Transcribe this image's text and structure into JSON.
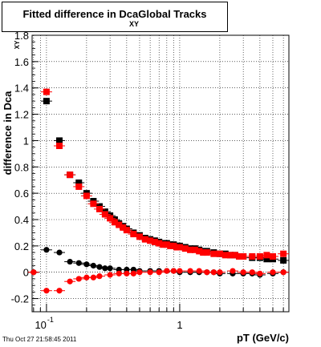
{
  "title": {
    "main": "Fitted difference in Dca",
    "sub": "XY",
    "suffix": "Global Tracks"
  },
  "footer": "Thu Oct 27 21:58:45 2011",
  "colors": {
    "series1": "#000000",
    "series2": "#ff0000",
    "grid": "#000000"
  },
  "chart_data": {
    "type": "scatter",
    "xlabel": "pT (GeV/c)",
    "ylabel": "difference in Dca",
    "ylabel_sub": "XY",
    "xscale": "log",
    "xlim": [
      0.078,
      6.6
    ],
    "ylim": [
      -0.3,
      1.8
    ],
    "grid": true,
    "yticks": [
      {
        "v": -0.2,
        "label": "-0.2"
      },
      {
        "v": 0,
        "label": "0"
      },
      {
        "v": 0.2,
        "label": "0.2"
      },
      {
        "v": 0.4,
        "label": "0.4"
      },
      {
        "v": 0.6,
        "label": "0.6"
      },
      {
        "v": 0.8,
        "label": "0.8"
      },
      {
        "v": 1.0,
        "label": "1"
      },
      {
        "v": 1.2,
        "label": "1.2"
      },
      {
        "v": 1.4,
        "label": "1.4"
      },
      {
        "v": 1.6,
        "label": "1.6"
      },
      {
        "v": 1.8,
        "label": "1.8"
      }
    ],
    "xticks": [
      {
        "v": 0.1,
        "label": "10",
        "sup": "-1"
      },
      {
        "v": 1,
        "label": "1",
        "sup": ""
      }
    ],
    "series": [
      {
        "marker": "square",
        "color": "#000000",
        "x": [
          0.1,
          0.125,
          0.15,
          0.175,
          0.2,
          0.225,
          0.25,
          0.275,
          0.3,
          0.325,
          0.35,
          0.375,
          0.4,
          0.45,
          0.5,
          0.55,
          0.6,
          0.65,
          0.7,
          0.75,
          0.8,
          0.85,
          0.9,
          0.95,
          1.0,
          1.1,
          1.2,
          1.3,
          1.4,
          1.5,
          1.6,
          1.8,
          2.0,
          2.2,
          2.4,
          2.6,
          2.8,
          3.0,
          3.5,
          4.0,
          4.5,
          5.0,
          6.0
        ],
        "y": [
          1.3,
          1.0,
          0.74,
          0.68,
          0.6,
          0.54,
          0.5,
          0.46,
          0.43,
          0.4,
          0.37,
          0.35,
          0.33,
          0.3,
          0.28,
          0.26,
          0.25,
          0.24,
          0.23,
          0.22,
          0.22,
          0.21,
          0.21,
          0.2,
          0.2,
          0.19,
          0.18,
          0.18,
          0.17,
          0.16,
          0.16,
          0.15,
          0.14,
          0.14,
          0.13,
          0.13,
          0.12,
          0.12,
          0.11,
          0.11,
          0.1,
          0.1,
          0.09
        ]
      },
      {
        "marker": "square",
        "color": "#ff0000",
        "x": [
          0.1,
          0.125,
          0.15,
          0.175,
          0.2,
          0.225,
          0.25,
          0.275,
          0.3,
          0.325,
          0.35,
          0.375,
          0.4,
          0.45,
          0.5,
          0.55,
          0.6,
          0.65,
          0.7,
          0.75,
          0.8,
          0.85,
          0.9,
          0.95,
          1.0,
          1.1,
          1.2,
          1.3,
          1.4,
          1.5,
          1.6,
          1.8,
          2.0,
          2.2,
          2.4,
          2.6,
          2.8,
          3.0,
          3.5,
          4.0,
          4.5,
          5.0,
          6.0
        ],
        "y": [
          1.37,
          0.96,
          0.74,
          0.65,
          0.58,
          0.52,
          0.48,
          0.44,
          0.41,
          0.38,
          0.36,
          0.34,
          0.32,
          0.29,
          0.27,
          0.25,
          0.24,
          0.23,
          0.22,
          0.21,
          0.21,
          0.2,
          0.2,
          0.19,
          0.19,
          0.18,
          0.17,
          0.17,
          0.16,
          0.15,
          0.15,
          0.14,
          0.14,
          0.13,
          0.13,
          0.13,
          0.12,
          0.12,
          0.12,
          0.12,
          0.13,
          0.12,
          0.14
        ]
      },
      {
        "marker": "circle",
        "color": "#000000",
        "x": [
          0.08,
          0.1,
          0.125,
          0.15,
          0.175,
          0.2,
          0.225,
          0.25,
          0.275,
          0.3,
          0.35,
          0.4,
          0.45,
          0.5,
          0.6,
          0.7,
          0.8,
          0.9,
          1.0,
          1.2,
          1.4,
          1.6,
          1.8,
          2.0,
          2.5,
          3.0,
          3.5,
          4.0,
          5.0,
          6.0
        ],
        "y": [
          0.0,
          0.17,
          0.15,
          0.08,
          0.07,
          0.06,
          0.05,
          0.04,
          0.03,
          0.03,
          0.02,
          0.02,
          0.02,
          0.01,
          0.01,
          0.01,
          0.01,
          0.01,
          0.0,
          0.0,
          0.0,
          0.0,
          0.0,
          -0.01,
          -0.01,
          -0.01,
          -0.01,
          -0.02,
          -0.01,
          0.0
        ]
      },
      {
        "marker": "circle",
        "color": "#ff0000",
        "x": [
          0.08,
          0.1,
          0.125,
          0.15,
          0.175,
          0.2,
          0.225,
          0.25,
          0.3,
          0.35,
          0.4,
          0.45,
          0.5,
          0.6,
          0.7,
          0.8,
          0.9,
          1.0,
          1.2,
          1.4,
          1.6,
          1.8,
          2.0,
          2.5,
          3.0,
          3.5,
          4.0,
          5.0,
          6.0
        ],
        "y": [
          0.0,
          -0.14,
          -0.14,
          -0.07,
          -0.05,
          -0.04,
          -0.04,
          -0.03,
          -0.02,
          -0.01,
          -0.01,
          -0.01,
          0.0,
          0.0,
          0.0,
          0.01,
          0.01,
          0.01,
          0.01,
          0.01,
          0.0,
          0.0,
          0.0,
          0.01,
          0.0,
          0.0,
          -0.01,
          0.0,
          0.0
        ]
      }
    ]
  }
}
